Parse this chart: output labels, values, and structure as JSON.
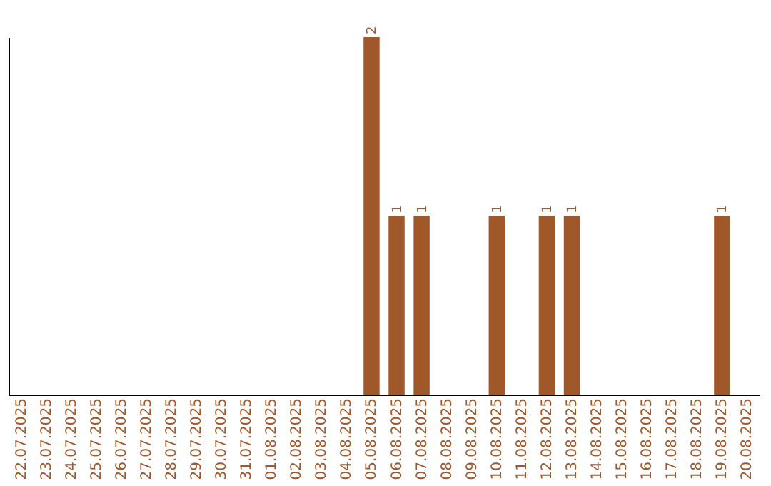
{
  "chart_data": {
    "type": "bar",
    "categories": [
      "22.07.2025",
      "23.07.2025",
      "24.07.2025",
      "25.07.2025",
      "26.07.2025",
      "27.07.2025",
      "28.07.2025",
      "29.07.2025",
      "30.07.2025",
      "31.07.2025",
      "01.08.2025",
      "02.08.2025",
      "03.08.2025",
      "04.08.2025",
      "05.08.2025",
      "06.08.2025",
      "07.08.2025",
      "08.08.2025",
      "09.08.2025",
      "10.08.2025",
      "11.08.2025",
      "12.08.2025",
      "13.08.2025",
      "14.08.2025",
      "15.08.2025",
      "16.08.2025",
      "17.08.2025",
      "18.08.2025",
      "19.08.2025",
      "20.08.2025"
    ],
    "values": [
      null,
      null,
      null,
      null,
      null,
      null,
      null,
      null,
      null,
      null,
      null,
      null,
      null,
      null,
      2,
      1,
      1,
      null,
      null,
      1,
      null,
      1,
      1,
      null,
      null,
      null,
      null,
      null,
      1,
      null
    ],
    "color": "#a0572a",
    "ylim": [
      0,
      2
    ],
    "data_labels": true,
    "tick_labels": "x"
  }
}
